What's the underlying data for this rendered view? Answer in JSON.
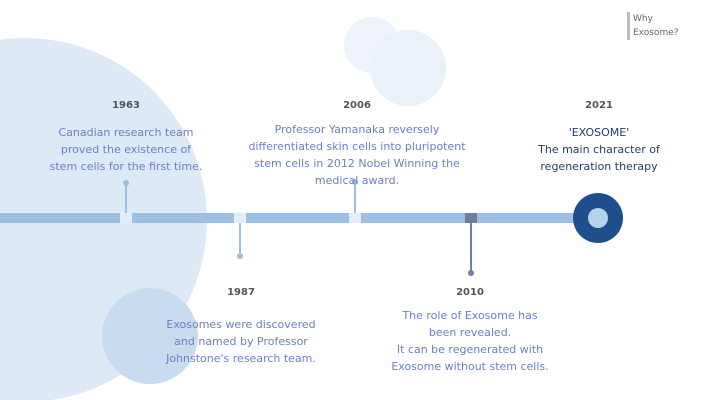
{
  "tag": {
    "lines": [
      "Why",
      "Exosome?"
    ]
  },
  "events": [
    {
      "year": "1963",
      "lines": [
        "Canadian research team",
        "proved the existence of",
        "stem cells for the first time."
      ]
    },
    {
      "year": "1987",
      "lines": [
        "Exosomes were discovered",
        "and named by Professor",
        "Johnstone's research team."
      ]
    },
    {
      "year": "2006",
      "lines": [
        "Professor Yamanaka reversely",
        "differentiated skin cells into pluripotent",
        "stem cells in 2012 Nobel  Winning the",
        "medical award."
      ]
    },
    {
      "year": "2010",
      "lines": [
        "The role of Exosome has",
        "been revealed.",
        "It can be regenerated with",
        "Exosome without stem cells."
      ]
    },
    {
      "year": "2021",
      "lines": [
        "'EXOSOME'",
        "The main character of",
        "regeneration therapy"
      ]
    }
  ]
}
